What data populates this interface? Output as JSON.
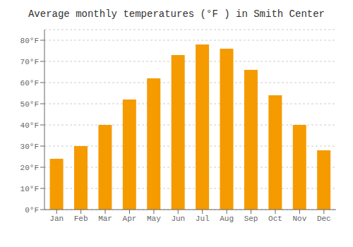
{
  "chart_data": {
    "type": "bar",
    "title": "Average monthly temperatures (°F ) in Smith Center",
    "categories": [
      "Jan",
      "Feb",
      "Mar",
      "Apr",
      "May",
      "Jun",
      "Jul",
      "Aug",
      "Sep",
      "Oct",
      "Nov",
      "Dec"
    ],
    "values": [
      24,
      30,
      40,
      52,
      62,
      73,
      78,
      76,
      66,
      54,
      40,
      28
    ],
    "color": "#F59B00",
    "ylim": [
      0,
      85
    ],
    "yticks": [
      {
        "value": 0,
        "label": "0°F"
      },
      {
        "value": 10,
        "label": "10°F"
      },
      {
        "value": 20,
        "label": "20°F"
      },
      {
        "value": 30,
        "label": "30°F"
      },
      {
        "value": 40,
        "label": "40°F"
      },
      {
        "value": 50,
        "label": "50°F"
      },
      {
        "value": 60,
        "label": "60°F"
      },
      {
        "value": 70,
        "label": "70°F"
      },
      {
        "value": 80,
        "label": "80°F"
      }
    ],
    "grid": true
  }
}
